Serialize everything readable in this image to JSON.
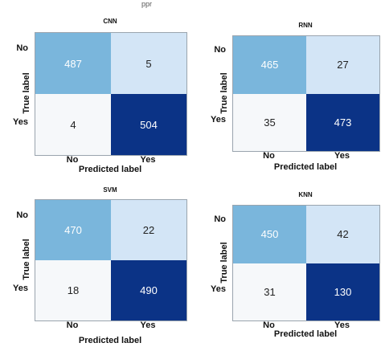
{
  "cropped_text": "ppr",
  "chart_data": [
    {
      "type": "heatmap",
      "title": "CNN",
      "xlabel": "Predicted label",
      "ylabel": "True label",
      "x_categories": [
        "No",
        "Yes"
      ],
      "y_categories": [
        "No",
        "Yes"
      ],
      "values": [
        [
          487,
          5
        ],
        [
          4,
          504
        ]
      ],
      "colors": [
        [
          "#7ab6dc",
          "#d3e5f6"
        ],
        [
          "#f6f8fa",
          "#0b3386"
        ]
      ]
    },
    {
      "type": "heatmap",
      "title": "RNN",
      "xlabel": "Predicted label",
      "ylabel": "True label",
      "x_categories": [
        "No",
        "Yes"
      ],
      "y_categories": [
        "No",
        "Yes"
      ],
      "values": [
        [
          465,
          27
        ],
        [
          35,
          473
        ]
      ],
      "colors": [
        [
          "#7ab6dc",
          "#d3e5f6"
        ],
        [
          "#f6f8fa",
          "#0b3386"
        ]
      ]
    },
    {
      "type": "heatmap",
      "title": "SVM",
      "xlabel": "Predicted label",
      "ylabel": "True label",
      "x_categories": [
        "No",
        "Yes"
      ],
      "y_categories": [
        "No",
        "Yes"
      ],
      "values": [
        [
          470,
          22
        ],
        [
          18,
          490
        ]
      ],
      "colors": [
        [
          "#7ab6dc",
          "#d3e5f6"
        ],
        [
          "#f6f8fa",
          "#0b3386"
        ]
      ]
    },
    {
      "type": "heatmap",
      "title": "KNN",
      "xlabel": "Predicted label",
      "ylabel": "True label",
      "x_categories": [
        "No",
        "Yes"
      ],
      "y_categories": [
        "No",
        "Yes"
      ],
      "values": [
        [
          450,
          42
        ],
        [
          31,
          130
        ]
      ],
      "colors": [
        [
          "#7ab6dc",
          "#d3e5f6"
        ],
        [
          "#f6f8fa",
          "#0b3386"
        ]
      ]
    }
  ]
}
